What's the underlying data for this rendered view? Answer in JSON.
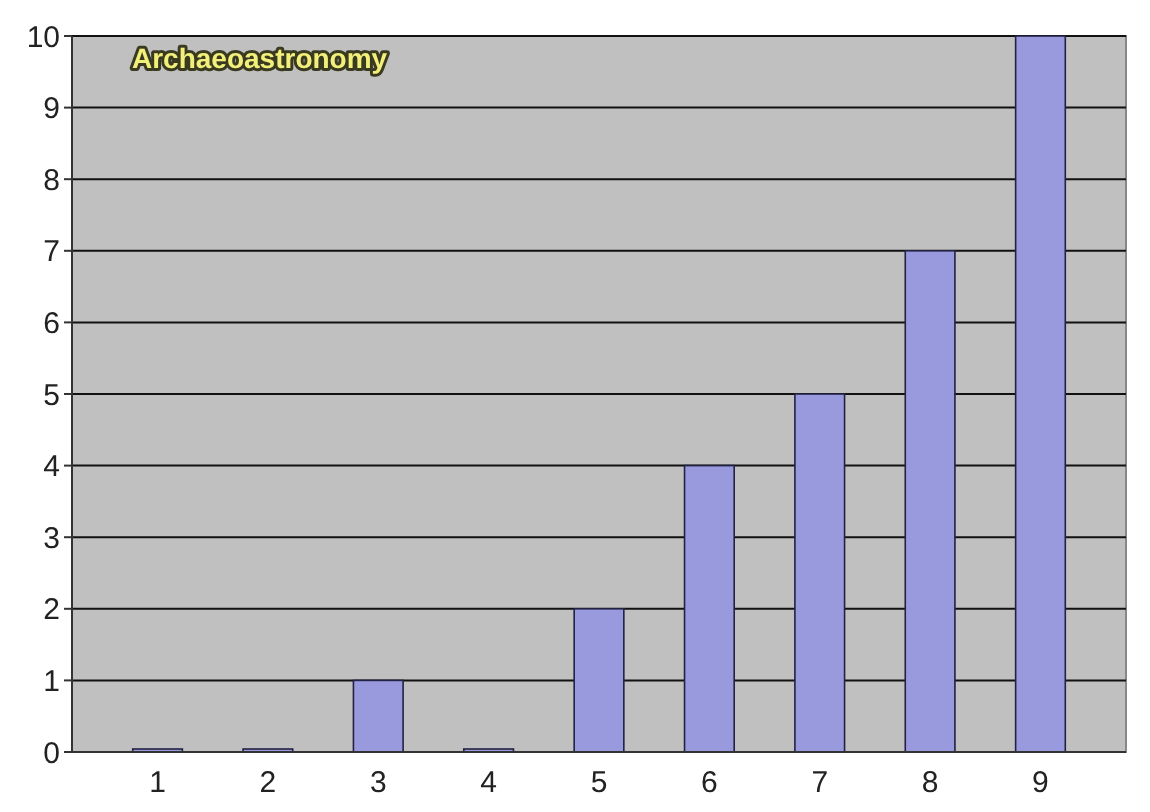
{
  "chart_data": {
    "type": "bar",
    "title": "Archaeoastronomy",
    "categories": [
      "1",
      "2",
      "3",
      "4",
      "5",
      "6",
      "7",
      "8",
      "9"
    ],
    "values": [
      0,
      0,
      1,
      0,
      2,
      4,
      5,
      7,
      10
    ],
    "color": "#9999dd",
    "ylim": [
      0,
      10
    ],
    "yticks": [
      0,
      1,
      2,
      3,
      4,
      5,
      6,
      7,
      8,
      9,
      10
    ],
    "grid": "y"
  }
}
